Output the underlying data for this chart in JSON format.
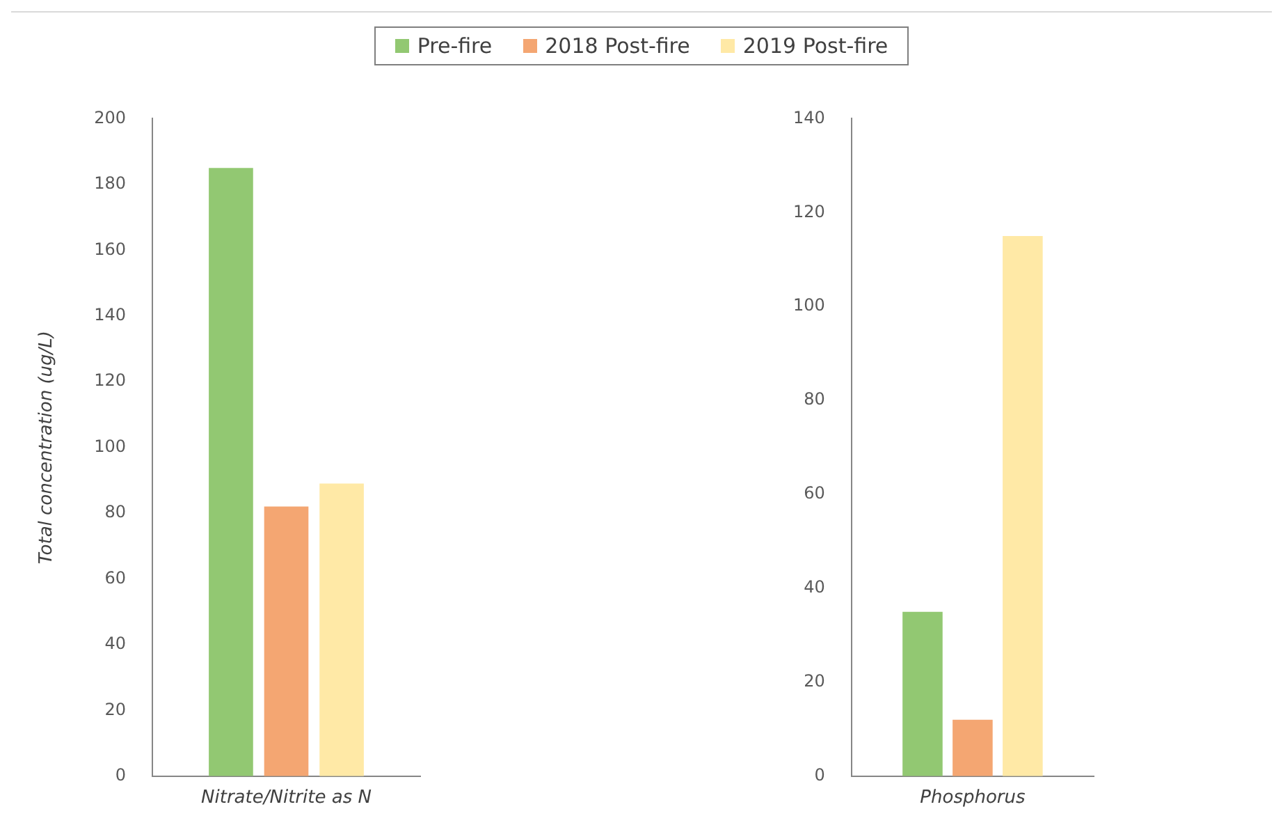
{
  "chart_data": [
    {
      "type": "bar",
      "categories": [
        "Nitrate/Nitrite as N"
      ],
      "ylabel": "Total concentration (ug/L)",
      "ylim": [
        0,
        200
      ],
      "yticks": [
        0,
        20,
        40,
        60,
        80,
        100,
        120,
        140,
        160,
        180,
        200
      ],
      "legend": "top",
      "series": [
        {
          "name": "Pre-fire",
          "color": "#92c872",
          "values": [
            185
          ]
        },
        {
          "name": "2018 Post-fire",
          "color": "#f4a672",
          "values": [
            82
          ]
        },
        {
          "name": "2019 Post-fire",
          "color": "#ffe9a6",
          "values": [
            89
          ]
        }
      ]
    },
    {
      "type": "bar",
      "categories": [
        "Phosphorus"
      ],
      "ylim": [
        0,
        140
      ],
      "yticks": [
        0,
        20,
        40,
        60,
        80,
        100,
        120,
        140
      ],
      "series": [
        {
          "color": "#92c872",
          "values": [
            35
          ]
        },
        {
          "color": "#f4a672",
          "values": [
            12
          ]
        },
        {
          "color": "#ffe9a6",
          "values": [
            115
          ]
        }
      ]
    }
  ]
}
